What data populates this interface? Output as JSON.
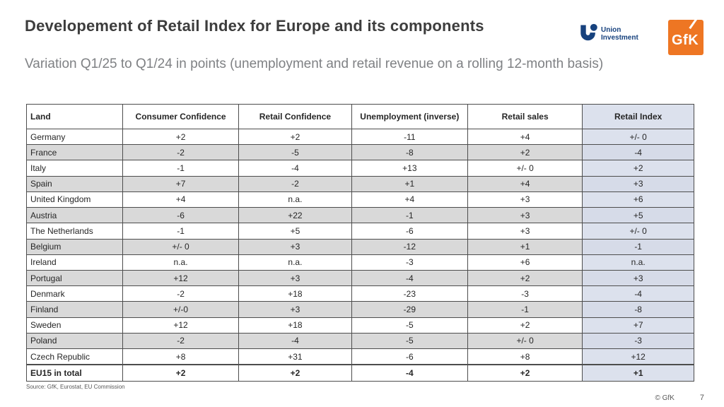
{
  "slide": {
    "title": "Developement of Retail Index for Europe and its components",
    "subtitle": "Variation Q1/25 to Q1/24 in points (unemployment and retail revenue on a rolling 12-month basis)"
  },
  "logos": {
    "union_investment": {
      "line1": "Union",
      "line2": "Investment",
      "color": "#17427e"
    },
    "gfk": {
      "text": "GfK",
      "color": "#ee7623"
    }
  },
  "chart_data": {
    "type": "table",
    "columns": [
      "Land",
      "Consumer Confidence",
      "Retail Confidence",
      "Unemployment (inverse)",
      "Retail sales",
      "Retail Index"
    ],
    "rows": [
      [
        "Germany",
        "+2",
        "+2",
        "-11",
        "+4",
        "+/- 0"
      ],
      [
        "France",
        "-2",
        "-5",
        "-8",
        "+2",
        "-4"
      ],
      [
        "Italy",
        "-1",
        "-4",
        "+13",
        "+/- 0",
        "+2"
      ],
      [
        "Spain",
        "+7",
        "-2",
        "+1",
        "+4",
        "+3"
      ],
      [
        "United Kingdom",
        "+4",
        "n.a.",
        "+4",
        "+3",
        "+6"
      ],
      [
        "Austria",
        "-6",
        "+22",
        "-1",
        "+3",
        "+5"
      ],
      [
        "The Netherlands",
        "-1",
        "+5",
        "-6",
        "+3",
        "+/- 0"
      ],
      [
        "Belgium",
        "+/- 0",
        "+3",
        "-12",
        "+1",
        "-1"
      ],
      [
        "Ireland",
        "n.a.",
        "n.a.",
        "-3",
        "+6",
        "n.a."
      ],
      [
        "Portugal",
        "+12",
        "+3",
        "-4",
        "+2",
        "+3"
      ],
      [
        "Denmark",
        "-2",
        "+18",
        "-23",
        "-3",
        "-4"
      ],
      [
        "Finland",
        "+/-0",
        "+3",
        "-29",
        "-1",
        "-8"
      ],
      [
        "Sweden",
        "+12",
        "+18",
        "-5",
        "+2",
        "+7"
      ],
      [
        "Poland",
        "-2",
        "-4",
        "-5",
        "+/- 0",
        "-3"
      ],
      [
        "Czech Republic",
        "+8",
        "+31",
        "-6",
        "+8",
        "+12"
      ],
      [
        "EU15 in total",
        "+2",
        "+2",
        "-4",
        "+2",
        "+1"
      ]
    ],
    "total_row_label": "EU15 in total",
    "colors": {
      "stripe_gray": "#d9d9d9",
      "retail_index_column": "#dce1ed",
      "border": "#4d4d4d"
    }
  },
  "footer": {
    "source": "Source: GfK, Eurostat, EU Commission",
    "copyright": "© GfK",
    "page": "7"
  }
}
